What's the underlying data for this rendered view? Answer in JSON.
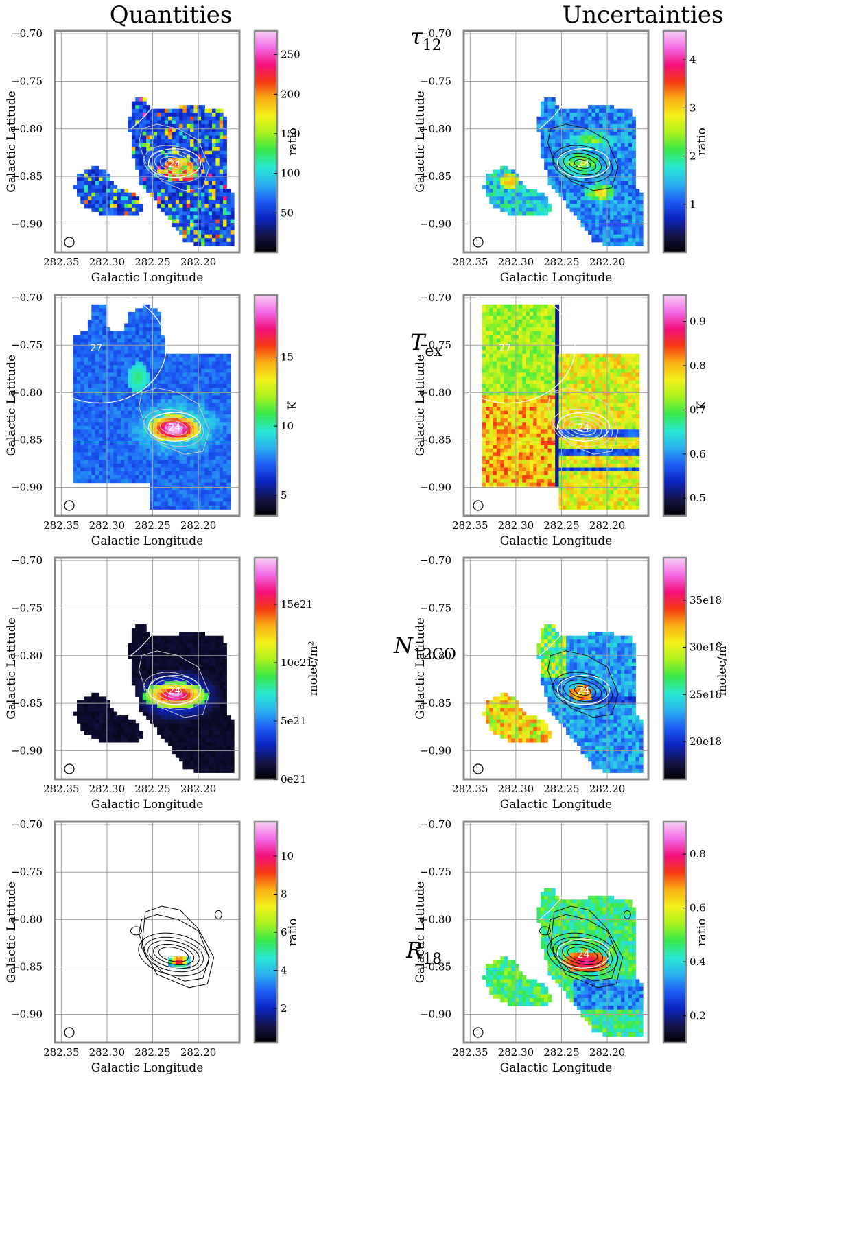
{
  "titles": {
    "left": "Quantities",
    "right": "Uncertainties"
  },
  "rows": [
    {
      "label_main": "τ",
      "label_sub": "12",
      "panels": [
        {
          "colorbar_label": "ratio",
          "colorbar_ticks": [
            "250",
            "200",
            "150",
            "100",
            "50"
          ],
          "colorbar_values": [
            250,
            200,
            150,
            100,
            50
          ],
          "colorbar_range": [
            0,
            280
          ]
        },
        {
          "colorbar_label": "ratio",
          "colorbar_ticks": [
            "4",
            "3",
            "2",
            "1"
          ],
          "colorbar_values": [
            4,
            3,
            2,
            1
          ],
          "colorbar_range": [
            0,
            4.6
          ]
        }
      ]
    },
    {
      "label_main": "T",
      "label_sub": "ex",
      "panels": [
        {
          "colorbar_label": "K",
          "colorbar_ticks": [
            "15",
            "10",
            "5"
          ],
          "colorbar_values": [
            15,
            10,
            5
          ],
          "colorbar_range": [
            3.5,
            19.5
          ]
        },
        {
          "colorbar_label": "K",
          "colorbar_ticks": [
            "0.9",
            "0.8",
            "0.7",
            "0.6",
            "0.5"
          ],
          "colorbar_values": [
            0.9,
            0.8,
            0.7,
            0.6,
            0.5
          ],
          "colorbar_range": [
            0.46,
            0.96
          ]
        }
      ]
    },
    {
      "label_main": "N",
      "label_sub": "12CO",
      "panels": [
        {
          "colorbar_label": "molec/m²",
          "colorbar_ticks": [
            "15e21",
            "10e21",
            "5e21",
            "0e21"
          ],
          "colorbar_values": [
            15,
            10,
            5,
            0
          ],
          "colorbar_range": [
            0,
            19
          ]
        },
        {
          "colorbar_label": "molec/m²",
          "colorbar_ticks": [
            "35e18",
            "30e18",
            "25e18",
            "20e18"
          ],
          "colorbar_values": [
            35,
            30,
            25,
            20
          ],
          "colorbar_range": [
            16,
            39.5
          ]
        }
      ]
    },
    {
      "label_main": "R",
      "label_sub": "18",
      "panels": [
        {
          "colorbar_label": "ratio",
          "colorbar_ticks": [
            "10",
            "8",
            "6",
            "4",
            "2"
          ],
          "colorbar_values": [
            10,
            8,
            6,
            4,
            2
          ],
          "colorbar_range": [
            0.2,
            11.8
          ]
        },
        {
          "colorbar_label": "ratio",
          "colorbar_ticks": [
            "0.8",
            "0.6",
            "0.4",
            "0.2"
          ],
          "colorbar_values": [
            0.8,
            0.6,
            0.4,
            0.2
          ],
          "colorbar_range": [
            0.1,
            0.92
          ]
        }
      ]
    }
  ],
  "axes": {
    "xlabel": "Galactic Longitude",
    "ylabel": "Galactic Latitude",
    "xticks": [
      "282.35",
      "282.30",
      "282.25",
      "282.20"
    ],
    "xtick_values": [
      282.35,
      282.3,
      282.25,
      282.2
    ],
    "yticks": [
      "−0.70",
      "−0.75",
      "−0.80",
      "−0.85",
      "−0.90"
    ],
    "ytick_values": [
      -0.7,
      -0.75,
      -0.8,
      -0.85,
      -0.9
    ],
    "xlim": [
      282.357,
      282.155
    ],
    "ylim": [
      -0.697,
      -0.93
    ]
  },
  "annotations": {
    "source_24": "24",
    "source_27": "27"
  },
  "colormap": [
    "#000000",
    "#15154a",
    "#0a24c0",
    "#1e5cf5",
    "#2ab0f0",
    "#28e8d2",
    "#36e84a",
    "#a8f21e",
    "#f4f21c",
    "#fab014",
    "#f43a12",
    "#f2107c",
    "#f46ae6",
    "#f8d0f6"
  ]
}
